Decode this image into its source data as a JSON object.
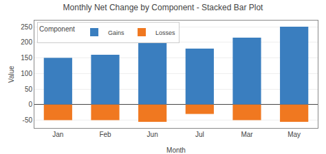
{
  "chart_data": {
    "type": "bar",
    "title": "Monthly Net Change by Component - Stacked Bar Plot",
    "xlabel": "Month",
    "ylabel": "Value",
    "legend_title": "Component",
    "categories": [
      "Jan",
      "Feb",
      "Jun",
      "Jul",
      "Mar",
      "May"
    ],
    "series": [
      {
        "name": "Gains",
        "color": "#3A7EBF",
        "values": [
          150,
          160,
          200,
          180,
          215,
          250
        ]
      },
      {
        "name": "Losses",
        "color": "#F07820",
        "values": [
          -50,
          -50,
          -55,
          -30,
          -50,
          -55
        ]
      }
    ],
    "stacked": true,
    "ylim": [
      -75,
      270
    ],
    "yticks": [
      -50,
      0,
      50,
      100,
      150,
      200,
      250
    ],
    "grid": true,
    "legend": "upper left"
  }
}
